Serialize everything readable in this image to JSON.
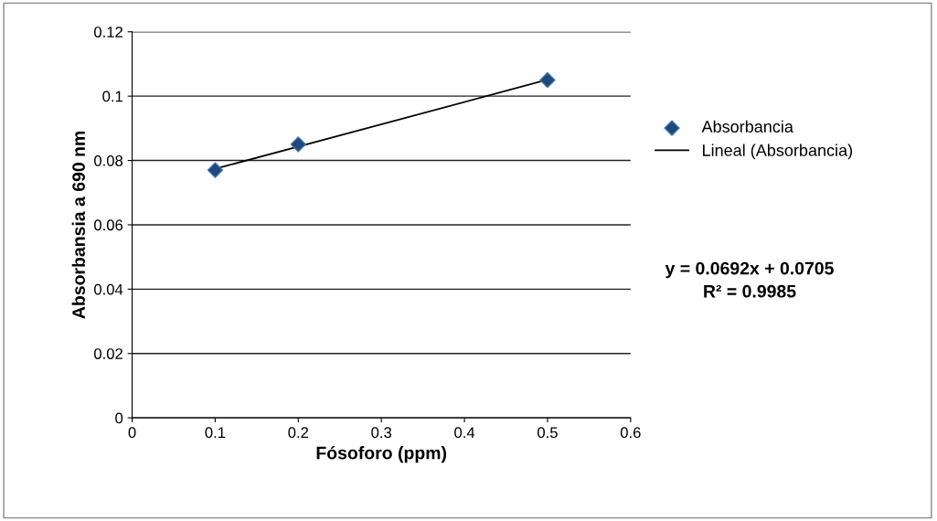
{
  "chart_data": {
    "type": "scatter",
    "xlabel": "Fósoforo (ppm)",
    "ylabel": "Absorbansia a 690 nm",
    "series": [
      {
        "name": "Absorbancia",
        "color": "#1f497d",
        "x": [
          0.1,
          0.2,
          0.5
        ],
        "values": [
          0.077,
          0.085,
          0.105
        ],
        "marker": "diamond"
      },
      {
        "name": "Lineal (Absorbancia)",
        "type": "line",
        "color": "#000000",
        "x": [
          0.1,
          0.5
        ],
        "values": [
          0.0774,
          0.1051
        ],
        "marker": "none",
        "line_style": "solid"
      }
    ],
    "xlim": [
      0,
      0.6
    ],
    "xticks": [
      0,
      0.1,
      0.2,
      0.3,
      0.4,
      0.5,
      0.6
    ],
    "ylim": [
      0,
      0.12
    ],
    "yticks": [
      0,
      0.02,
      0.04,
      0.06,
      0.08,
      0.1,
      0.12
    ],
    "grid": "y",
    "legend": "right",
    "annotations": [
      "y = 0.0692x + 0.0705\nR² = 0.9985"
    ]
  }
}
